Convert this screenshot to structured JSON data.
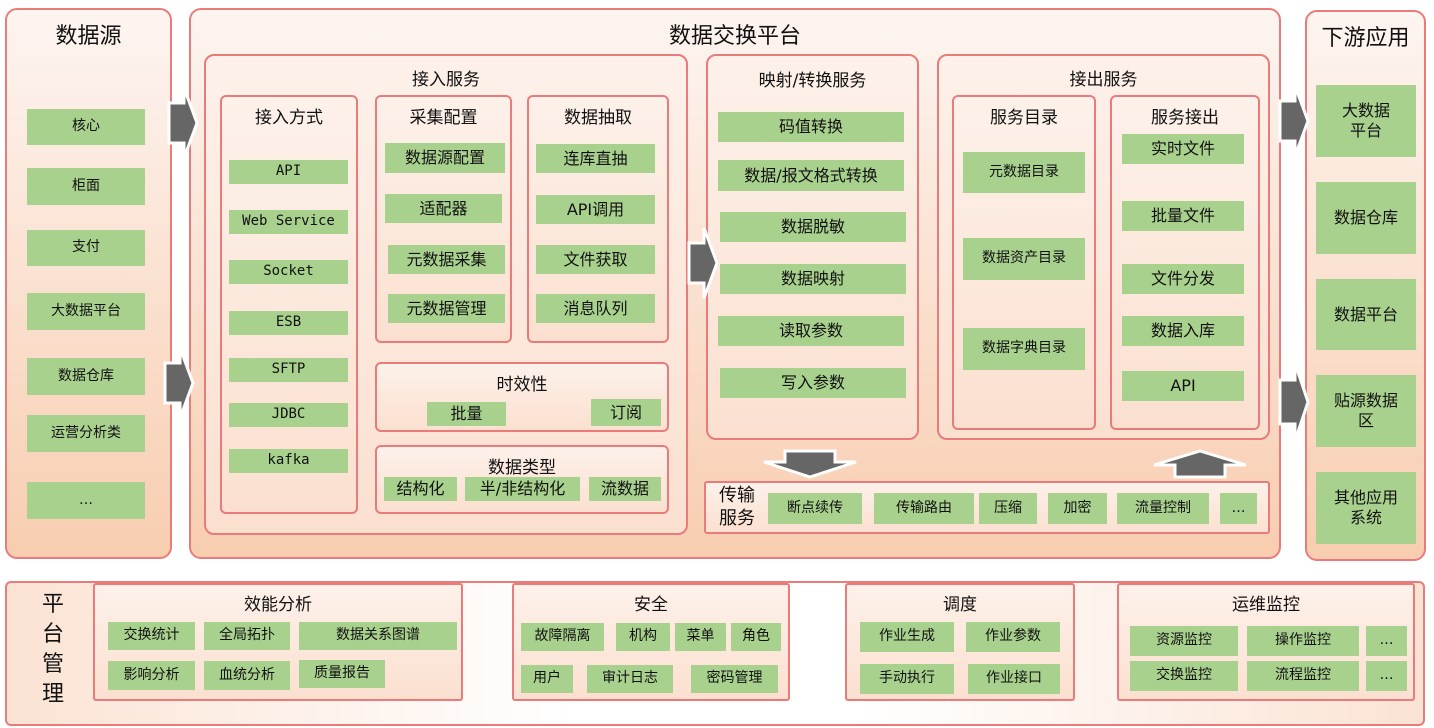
{
  "colors": {
    "border": "#e97b7b",
    "item": "#a9d18e",
    "arrow": "#666666"
  },
  "source": {
    "title": "数据源",
    "items": [
      "核心",
      "柜面",
      "支付",
      "大数据平台",
      "数据仓库",
      "运营分析类",
      "…"
    ]
  },
  "platform": {
    "title": "数据交换平台",
    "ingest": {
      "title": "接入服务",
      "methods": {
        "title": "接入方式",
        "items": [
          "API",
          "Web Service",
          "Socket",
          "ESB",
          "SFTP",
          "JDBC",
          "kafka"
        ]
      },
      "collect": {
        "title": "采集配置",
        "items": [
          "数据源配置",
          "适配器",
          "元数据采集",
          "元数据管理"
        ]
      },
      "extract": {
        "title": "数据抽取",
        "items": [
          "连库直抽",
          "API调用",
          "文件获取",
          "消息队列"
        ]
      },
      "timeliness": {
        "title": "时效性",
        "items": [
          "批量",
          "订阅"
        ]
      },
      "datatype": {
        "title": "数据类型",
        "items": [
          "结构化",
          "半/非结构化",
          "流数据"
        ]
      }
    },
    "mapping": {
      "title": "映射/转换服务",
      "items": [
        "码值转换",
        "数据/报文格式转换",
        "数据脱敏",
        "数据映射",
        "读取参数",
        "写入参数"
      ]
    },
    "egress": {
      "title": "接出服务",
      "catalog": {
        "title": "服务目录",
        "items": [
          "元数据目录",
          "数据资产目录",
          "数据字典目录"
        ]
      },
      "out": {
        "title": "服务接出",
        "items": [
          "实时文件",
          "批量文件",
          "文件分发",
          "数据入库",
          "API"
        ]
      }
    },
    "transport": {
      "title": "传输服务",
      "items": [
        "断点续传",
        "传输路由",
        "压缩",
        "加密",
        "流量控制",
        "…"
      ]
    }
  },
  "downstream": {
    "title": "下游应用",
    "items": [
      "大数据平台",
      "数据仓库",
      "数据平台",
      "贴源数据区",
      "其他应用系统"
    ]
  },
  "management": {
    "title": "平台管理",
    "perf": {
      "title": "效能分析",
      "items": [
        "交换统计",
        "全局拓扑",
        "数据关系图谱",
        "影响分析",
        "血统分析",
        "质量报告"
      ]
    },
    "security": {
      "title": "安全",
      "items": [
        "故障隔离",
        "机构",
        "菜单",
        "角色",
        "用户",
        "审计日志",
        "密码管理"
      ]
    },
    "schedule": {
      "title": "调度",
      "items": [
        "作业生成",
        "作业参数",
        "手动执行",
        "作业接口"
      ]
    },
    "ops": {
      "title": "运维监控",
      "items": [
        "资源监控",
        "操作监控",
        "…",
        "交换监控",
        "流程监控",
        "…"
      ]
    }
  }
}
